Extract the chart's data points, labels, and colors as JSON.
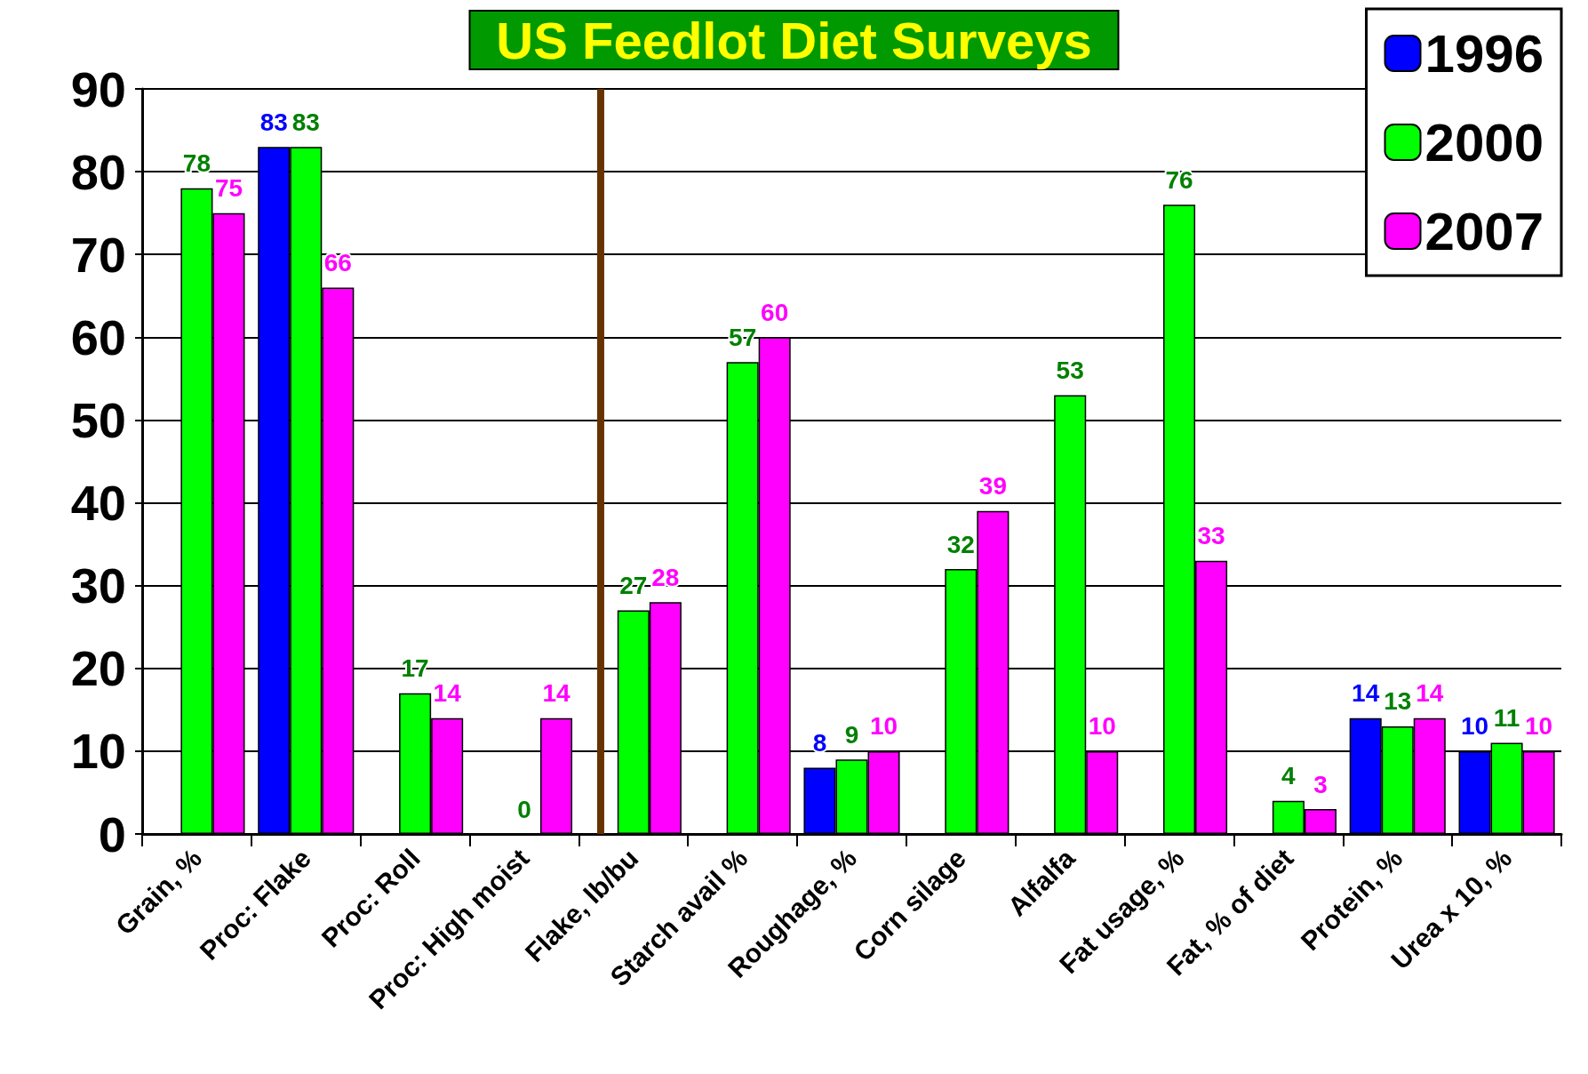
{
  "chart_data": {
    "type": "bar",
    "title": "US Feedlot Diet Surveys",
    "categories": [
      "Grain, %",
      "Proc: Flake",
      "Proc: Roll",
      "Proc: High moist",
      "Flake, lb/bu",
      "Starch avail %",
      "Roughage, %",
      "Corn silage",
      "Alfalfa",
      "Fat usage, %",
      "Fat, % of diet",
      "Protein, %",
      "Urea x 10, %"
    ],
    "series": [
      {
        "name": "1996",
        "color": "#0000ff",
        "values": [
          null,
          83,
          null,
          null,
          null,
          null,
          8,
          null,
          null,
          null,
          null,
          14,
          10
        ]
      },
      {
        "name": "2000",
        "color": "#00ff00",
        "values": [
          78,
          83,
          17,
          0,
          27,
          57,
          9,
          32,
          53,
          76,
          4,
          13,
          11
        ]
      },
      {
        "name": "2007",
        "color": "#ff00ff",
        "values": [
          75,
          66,
          14,
          14,
          28,
          60,
          10,
          39,
          10,
          33,
          3,
          14,
          10
        ]
      }
    ],
    "ylim": [
      0,
      90
    ],
    "yticks": [
      0,
      10,
      20,
      30,
      40,
      50,
      60,
      70,
      80,
      90
    ],
    "ref_lines": [
      {
        "axis": "x",
        "value": "Flake, lb/bu",
        "color": "#663300"
      }
    ],
    "grid": "y",
    "legend": "top right",
    "data_labels": true
  }
}
